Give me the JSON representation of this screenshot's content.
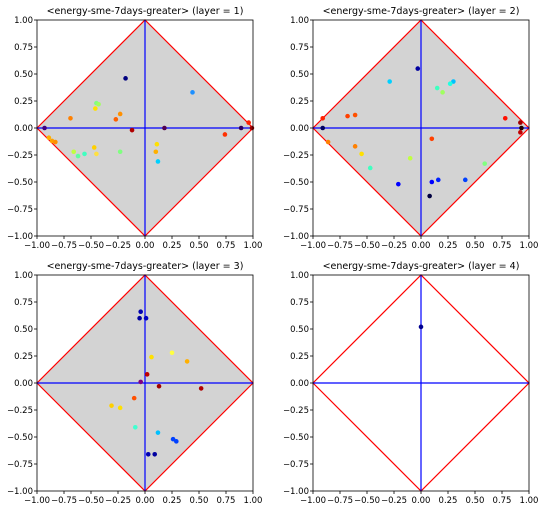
{
  "chart_data": [
    {
      "type": "scatter",
      "title": "<energy-sme-7days-greater> (layer = 1)",
      "xlim": [
        -1,
        1
      ],
      "ylim": [
        -1,
        1
      ],
      "xticks": [
        "−1.00",
        "−0.75",
        "−0.50",
        "−0.25",
        "0.00",
        "0.25",
        "0.50",
        "0.75",
        "1.00"
      ],
      "yticks": [
        "−1.00",
        "−0.75",
        "−0.50",
        "−0.25",
        "0.00",
        "0.25",
        "0.50",
        "0.75",
        "1.00"
      ],
      "diamond_color": "#ff0000",
      "axis_line_color": "#0000ff",
      "fill_color": "#d3d3d3",
      "points": [
        {
          "x": -0.18,
          "y": 0.46,
          "color": "#00007f"
        },
        {
          "x": 0.44,
          "y": 0.33,
          "color": "#1e90ff"
        },
        {
          "x": -0.45,
          "y": 0.23,
          "color": "#80ff80"
        },
        {
          "x": -0.43,
          "y": 0.22,
          "color": "#a0ff60"
        },
        {
          "x": -0.46,
          "y": 0.18,
          "color": "#ffe000"
        },
        {
          "x": -0.23,
          "y": 0.13,
          "color": "#ff9000"
        },
        {
          "x": -0.27,
          "y": 0.08,
          "color": "#ff6000"
        },
        {
          "x": -0.69,
          "y": 0.09,
          "color": "#ff8000"
        },
        {
          "x": -0.93,
          "y": 0.0,
          "color": "#400080"
        },
        {
          "x": -0.12,
          "y": -0.02,
          "color": "#b00000"
        },
        {
          "x": 0.18,
          "y": 0.0,
          "color": "#500050"
        },
        {
          "x": 0.89,
          "y": 0.0,
          "color": "#300060"
        },
        {
          "x": 0.96,
          "y": 0.05,
          "color": "#ff2000"
        },
        {
          "x": 0.99,
          "y": 0.0,
          "color": "#a00000"
        },
        {
          "x": 0.74,
          "y": -0.06,
          "color": "#ff3000"
        },
        {
          "x": -0.89,
          "y": -0.09,
          "color": "#ffb000"
        },
        {
          "x": -0.86,
          "y": -0.12,
          "color": "#ffa000"
        },
        {
          "x": -0.83,
          "y": -0.13,
          "color": "#ff9000"
        },
        {
          "x": -0.47,
          "y": -0.18,
          "color": "#ffd000"
        },
        {
          "x": -0.66,
          "y": -0.22,
          "color": "#c0ff40"
        },
        {
          "x": -0.62,
          "y": -0.26,
          "color": "#60ffa0"
        },
        {
          "x": -0.56,
          "y": -0.24,
          "color": "#40ffc0"
        },
        {
          "x": -0.45,
          "y": -0.24,
          "color": "#ffe040"
        },
        {
          "x": -0.23,
          "y": -0.22,
          "color": "#80ff80"
        },
        {
          "x": 0.11,
          "y": -0.15,
          "color": "#ffe000"
        },
        {
          "x": 0.1,
          "y": -0.22,
          "color": "#ffb000"
        },
        {
          "x": 0.12,
          "y": -0.31,
          "color": "#00d0ff"
        }
      ]
    },
    {
      "type": "scatter",
      "title": "<energy-sme-7days-greater> (layer = 2)",
      "xlim": [
        -1,
        1
      ],
      "ylim": [
        -1,
        1
      ],
      "xticks": [
        "−1.00",
        "−0.75",
        "−0.50",
        "−0.25",
        "0.00",
        "0.25",
        "0.50",
        "0.75",
        "1.00"
      ],
      "yticks": [
        "−1.00",
        "−0.75",
        "−0.50",
        "−0.25",
        "0.00",
        "0.25",
        "0.50",
        "0.75",
        "1.00"
      ],
      "diamond_color": "#ff0000",
      "axis_line_color": "#0000ff",
      "fill_color": "#d3d3d3",
      "points": [
        {
          "x": -0.03,
          "y": 0.55,
          "color": "#0000a0"
        },
        {
          "x": -0.29,
          "y": 0.43,
          "color": "#00d0ff"
        },
        {
          "x": 0.3,
          "y": 0.43,
          "color": "#00c0ff"
        },
        {
          "x": 0.27,
          "y": 0.41,
          "color": "#20ffe0"
        },
        {
          "x": 0.15,
          "y": 0.37,
          "color": "#40ffc0"
        },
        {
          "x": 0.2,
          "y": 0.33,
          "color": "#a0ff60"
        },
        {
          "x": -0.61,
          "y": 0.12,
          "color": "#ff5000"
        },
        {
          "x": -0.68,
          "y": 0.11,
          "color": "#ff4000"
        },
        {
          "x": -0.91,
          "y": 0.09,
          "color": "#ff2000"
        },
        {
          "x": -0.91,
          "y": 0.0,
          "color": "#000060"
        },
        {
          "x": 0.78,
          "y": 0.09,
          "color": "#ff1000"
        },
        {
          "x": 0.92,
          "y": 0.05,
          "color": "#a00000"
        },
        {
          "x": 0.93,
          "y": 0.0,
          "color": "#200000"
        },
        {
          "x": 0.92,
          "y": -0.04,
          "color": "#c00000"
        },
        {
          "x": 0.1,
          "y": -0.1,
          "color": "#ff4000"
        },
        {
          "x": -0.86,
          "y": -0.13,
          "color": "#ff8000"
        },
        {
          "x": -0.61,
          "y": -0.17,
          "color": "#ff8000"
        },
        {
          "x": -0.55,
          "y": -0.24,
          "color": "#ffe000"
        },
        {
          "x": -0.47,
          "y": -0.37,
          "color": "#40ffc0"
        },
        {
          "x": -0.1,
          "y": -0.28,
          "color": "#c0ff40"
        },
        {
          "x": 0.59,
          "y": -0.33,
          "color": "#80ff80"
        },
        {
          "x": -0.21,
          "y": -0.52,
          "color": "#0000ff"
        },
        {
          "x": 0.1,
          "y": -0.5,
          "color": "#0000ff"
        },
        {
          "x": 0.16,
          "y": -0.48,
          "color": "#0020ff"
        },
        {
          "x": 0.41,
          "y": -0.48,
          "color": "#0040ff"
        },
        {
          "x": 0.08,
          "y": -0.63,
          "color": "#000040"
        }
      ]
    },
    {
      "type": "scatter",
      "title": "<energy-sme-7days-greater> (layer = 3)",
      "xlim": [
        -1,
        1
      ],
      "ylim": [
        -1,
        1
      ],
      "xticks": [
        "−1.00",
        "−0.75",
        "−0.50",
        "−0.25",
        "0.00",
        "0.25",
        "0.50",
        "0.75",
        "1.00"
      ],
      "yticks": [
        "−1.00",
        "−0.75",
        "−0.50",
        "−0.25",
        "0.00",
        "0.25",
        "0.50",
        "0.75",
        "1.00"
      ],
      "diamond_color": "#ff0000",
      "axis_line_color": "#0000ff",
      "fill_color": "#d3d3d3",
      "points": [
        {
          "x": -0.04,
          "y": 0.66,
          "color": "#0000b0"
        },
        {
          "x": -0.05,
          "y": 0.6,
          "color": "#0000a0"
        },
        {
          "x": 0.01,
          "y": 0.6,
          "color": "#0000c0"
        },
        {
          "x": 0.25,
          "y": 0.28,
          "color": "#ffff40"
        },
        {
          "x": 0.39,
          "y": 0.2,
          "color": "#ffb000"
        },
        {
          "x": 0.06,
          "y": 0.24,
          "color": "#ffe000"
        },
        {
          "x": 0.02,
          "y": 0.08,
          "color": "#c00000"
        },
        {
          "x": -0.04,
          "y": 0.01,
          "color": "#800080"
        },
        {
          "x": 0.13,
          "y": -0.03,
          "color": "#a00000"
        },
        {
          "x": 0.52,
          "y": -0.05,
          "color": "#b00000"
        },
        {
          "x": -0.1,
          "y": -0.14,
          "color": "#ff5000"
        },
        {
          "x": -0.31,
          "y": -0.21,
          "color": "#ffd000"
        },
        {
          "x": -0.23,
          "y": -0.23,
          "color": "#ffe000"
        },
        {
          "x": -0.09,
          "y": -0.41,
          "color": "#40ffd0"
        },
        {
          "x": 0.12,
          "y": -0.46,
          "color": "#00c0ff"
        },
        {
          "x": 0.26,
          "y": -0.52,
          "color": "#0040ff"
        },
        {
          "x": 0.29,
          "y": -0.54,
          "color": "#0040ff"
        },
        {
          "x": 0.03,
          "y": -0.66,
          "color": "#0000b0"
        },
        {
          "x": 0.09,
          "y": -0.66,
          "color": "#0000a0"
        }
      ]
    },
    {
      "type": "scatter",
      "title": "<energy-sme-7days-greater> (layer = 4)",
      "xlim": [
        -1,
        1
      ],
      "ylim": [
        -1,
        1
      ],
      "xticks": [
        "−1.00",
        "−0.75",
        "−0.50",
        "−0.25",
        "0.00",
        "0.25",
        "0.50",
        "0.75",
        "1.00"
      ],
      "yticks": [
        "−1.00",
        "−0.75",
        "−0.50",
        "−0.25",
        "0.00",
        "0.25",
        "0.50",
        "0.75",
        "1.00"
      ],
      "diamond_color": "#ff0000",
      "axis_line_color": "#0000ff",
      "fill_color": "#ffffff",
      "points": [
        {
          "x": 0.0,
          "y": 0.52,
          "color": "#000090"
        }
      ]
    }
  ]
}
